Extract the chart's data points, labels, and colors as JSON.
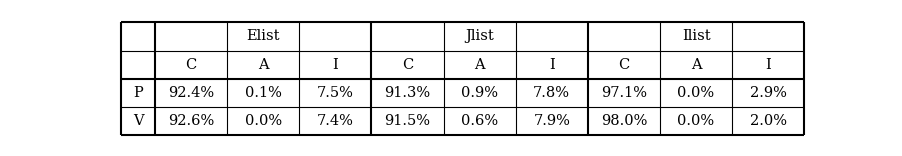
{
  "col_groups": [
    "Elist",
    "Jlist",
    "Ilist"
  ],
  "sub_cols": [
    "C",
    "A",
    "I"
  ],
  "row_labels": [
    "P",
    "V"
  ],
  "data": [
    [
      "92.4%",
      "0.1%",
      "7.5%",
      "91.3%",
      "0.9%",
      "7.8%",
      "97.1%",
      "0.0%",
      "2.9%"
    ],
    [
      "92.6%",
      "0.0%",
      "7.4%",
      "91.5%",
      "0.6%",
      "7.9%",
      "98.0%",
      "0.0%",
      "2.0%"
    ]
  ],
  "bg_color": "#ffffff",
  "text_color": "#000000",
  "line_color": "#000000",
  "font_size": 10.5,
  "header_font_size": 10.5,
  "figsize": [
    9.03,
    1.56
  ],
  "dpi": 100
}
